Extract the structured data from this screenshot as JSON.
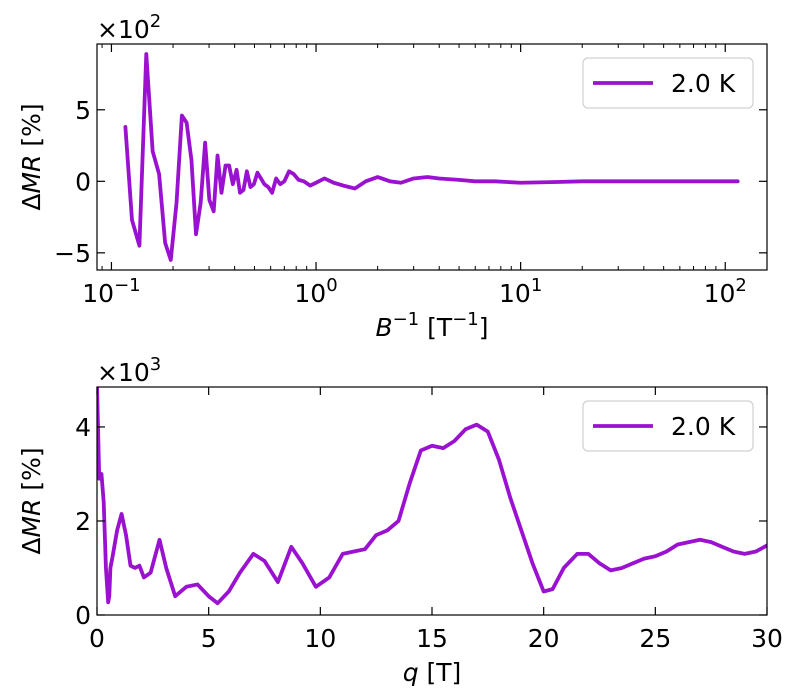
{
  "chart_data": [
    {
      "type": "line",
      "xscale": "log",
      "xlim": [
        0.085,
        160
      ],
      "ylim": [
        -6.2,
        9.6
      ],
      "y_multiplier": "×10",
      "y_multiplier_exp": "2",
      "xlabel": {
        "sym": "B",
        "sup": "−1",
        "unit_pre": " [T",
        "unit_sup": "−1",
        "unit_post": "]"
      },
      "ylabel": {
        "delta": "Δ",
        "sym": "MR",
        "unit": " [%]"
      },
      "xticks": [
        {
          "value": 0.1,
          "base": "10",
          "exp": "−1"
        },
        {
          "value": 1,
          "base": "10",
          "exp": "0"
        },
        {
          "value": 10,
          "base": "10",
          "exp": "1"
        },
        {
          "value": 100,
          "base": "10",
          "exp": "2"
        }
      ],
      "yticks": [
        {
          "value": -5,
          "label": "−5"
        },
        {
          "value": 0,
          "label": "0"
        },
        {
          "value": 5,
          "label": "5"
        }
      ],
      "legend": {
        "position": "top-right"
      },
      "series": [
        {
          "name": "2.0 K",
          "color": "#9b11d0",
          "x": [
            0.117,
            0.126,
            0.137,
            0.148,
            0.159,
            0.171,
            0.183,
            0.195,
            0.208,
            0.221,
            0.233,
            0.246,
            0.259,
            0.273,
            0.287,
            0.301,
            0.316,
            0.33,
            0.345,
            0.361,
            0.376,
            0.392,
            0.409,
            0.425,
            0.442,
            0.459,
            0.478,
            0.497,
            0.517,
            0.538,
            0.559,
            0.584,
            0.61,
            0.638,
            0.668,
            0.7,
            0.738,
            0.778,
            0.822,
            0.872,
            0.935,
            1.0,
            1.1,
            1.22,
            1.36,
            1.55,
            1.75,
            2.0,
            2.3,
            2.6,
            3.0,
            3.5,
            4.0,
            5.0,
            6.0,
            7.5,
            10.0,
            15.0,
            20.0,
            30.0,
            50.0,
            80.0,
            115.0
          ],
          "y": [
            3.8,
            -2.7,
            -4.5,
            8.9,
            2.1,
            0.5,
            -4.3,
            -5.5,
            -1.5,
            4.6,
            4.1,
            1.5,
            -3.7,
            -1.5,
            2.7,
            -1.3,
            -2.1,
            1.8,
            -0.8,
            1.1,
            1.1,
            -0.2,
            0.8,
            -0.8,
            -0.6,
            0.7,
            -0.4,
            -0.2,
            0.6,
            0.2,
            -0.2,
            -0.4,
            -0.8,
            0.2,
            -0.2,
            0.0,
            0.7,
            0.5,
            0.1,
            0.0,
            -0.3,
            -0.1,
            0.2,
            -0.1,
            -0.3,
            -0.5,
            0.0,
            0.3,
            0.0,
            -0.1,
            0.2,
            0.3,
            0.2,
            0.1,
            0.0,
            0.0,
            -0.1,
            -0.05,
            0.0,
            0.0,
            0.0,
            0.0,
            0.0
          ]
        }
      ]
    },
    {
      "type": "line",
      "xscale": "linear",
      "xlim": [
        0,
        30
      ],
      "ylim": [
        0,
        4.85
      ],
      "y_multiplier": "×10",
      "y_multiplier_exp": "3",
      "xlabel": {
        "sym": "q",
        "unit": " [T]"
      },
      "ylabel": {
        "delta": "Δ",
        "sym": "MR",
        "unit": " [%]"
      },
      "xticks": [
        {
          "value": 0,
          "label": "0"
        },
        {
          "value": 5,
          "label": "5"
        },
        {
          "value": 10,
          "label": "10"
        },
        {
          "value": 15,
          "label": "15"
        },
        {
          "value": 20,
          "label": "20"
        },
        {
          "value": 25,
          "label": "25"
        },
        {
          "value": 30,
          "label": "30"
        }
      ],
      "yticks": [
        {
          "value": 0,
          "label": "0"
        },
        {
          "value": 2,
          "label": "2"
        },
        {
          "value": 4,
          "label": "4"
        }
      ],
      "legend": {
        "position": "top-right"
      },
      "series": [
        {
          "name": "2.0 K",
          "color": "#9b11d0",
          "x": [
            0.0,
            0.1,
            0.2,
            0.3,
            0.4,
            0.5,
            0.55,
            0.6,
            0.7,
            0.9,
            1.1,
            1.3,
            1.5,
            1.7,
            1.9,
            2.1,
            2.4,
            2.8,
            3.1,
            3.5,
            4.0,
            4.5,
            5.0,
            5.4,
            5.9,
            6.4,
            7.0,
            7.5,
            8.1,
            8.7,
            9.2,
            9.8,
            10.4,
            11.0,
            11.5,
            12.0,
            12.5,
            13.0,
            13.5,
            14.0,
            14.5,
            15.0,
            15.5,
            16.0,
            16.5,
            17.0,
            17.5,
            18.0,
            18.5,
            19.0,
            19.5,
            20.0,
            20.4,
            20.9,
            21.5,
            22.0,
            22.5,
            23.0,
            23.5,
            24.0,
            24.5,
            25.0,
            25.5,
            26.0,
            26.5,
            27.0,
            27.5,
            28.0,
            28.5,
            29.0,
            29.5,
            30.0
          ],
          "y": [
            4.9,
            2.9,
            3.0,
            2.4,
            1.0,
            0.27,
            0.4,
            1.0,
            1.25,
            1.8,
            2.15,
            1.7,
            1.05,
            1.0,
            1.05,
            0.8,
            0.9,
            1.6,
            1.0,
            0.4,
            0.6,
            0.65,
            0.4,
            0.25,
            0.5,
            0.9,
            1.3,
            1.15,
            0.7,
            1.45,
            1.1,
            0.6,
            0.8,
            1.3,
            1.35,
            1.4,
            1.7,
            1.8,
            2.0,
            2.8,
            3.5,
            3.6,
            3.55,
            3.7,
            3.95,
            4.05,
            3.9,
            3.3,
            2.5,
            1.8,
            1.1,
            0.5,
            0.55,
            1.0,
            1.3,
            1.3,
            1.1,
            0.95,
            1.0,
            1.1,
            1.2,
            1.25,
            1.35,
            1.5,
            1.55,
            1.6,
            1.55,
            1.45,
            1.35,
            1.3,
            1.35,
            1.48
          ]
        }
      ]
    }
  ]
}
